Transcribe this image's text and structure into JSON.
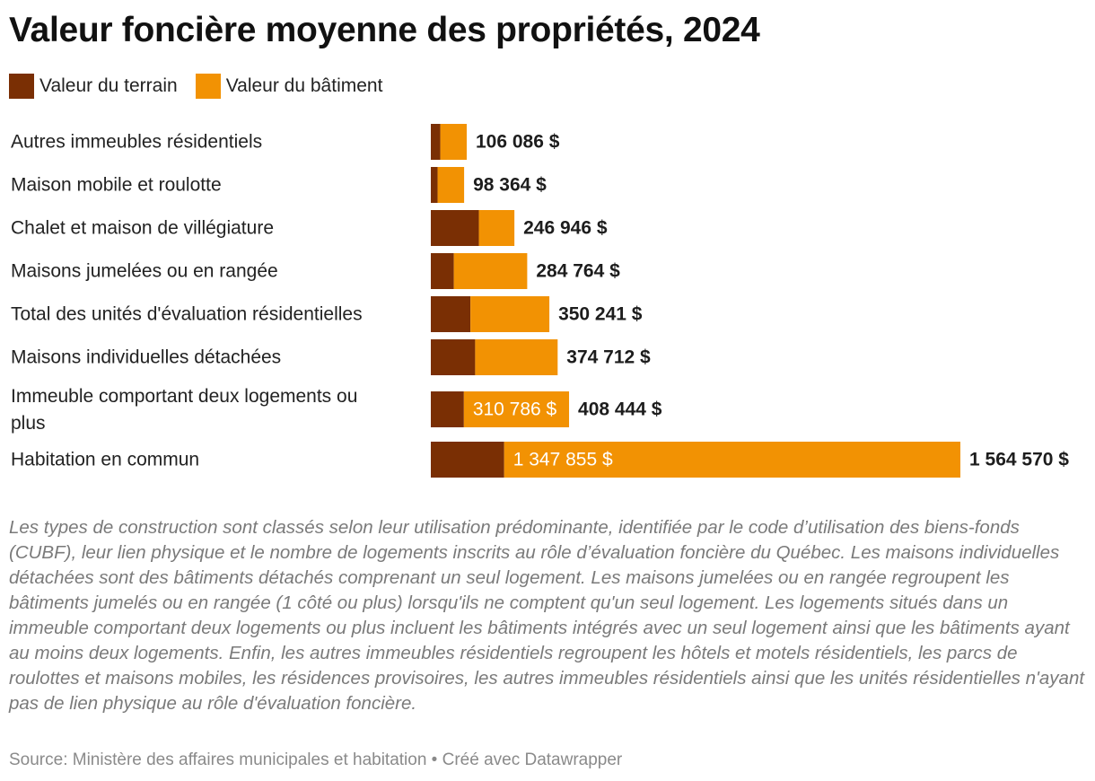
{
  "title": "Valeur foncière moyenne des propriétés, 2024",
  "colors": {
    "terrain": "#7a2f04",
    "batiment": "#f29203"
  },
  "chart_data": {
    "type": "bar",
    "orientation": "horizontal",
    "stacked": true,
    "legend_position": "top-left",
    "categories": [
      "Autres immeubles résidentiels",
      "Maison mobile et roulotte",
      "Chalet et maison de villégiature",
      "Maisons jumelées ou en rangée",
      "Total des unités d'évaluation résidentielles",
      "Maisons individuelles détachées",
      "Immeuble comportant deux logements ou plus",
      "Habitation en commun"
    ],
    "series": [
      {
        "name": "Valeur du terrain",
        "values": [
          28000,
          20000,
          142000,
          68000,
          117000,
          131000,
          97658,
          216715
        ]
      },
      {
        "name": "Valeur du bâtiment",
        "values": [
          78086,
          78364,
          104946,
          216764,
          233241,
          243712,
          310786,
          1347855
        ]
      }
    ],
    "segment_labels": [
      "",
      "",
      "",
      "",
      "",
      "",
      "310 786 $",
      "1 347 855 $"
    ],
    "totals": [
      106086,
      98364,
      246946,
      284764,
      350241,
      374712,
      408444,
      1564570
    ],
    "total_labels": [
      "106 086 $",
      "98 364 $",
      "246 946 $",
      "284 764 $",
      "350 241 $",
      "374 712 $",
      "408 444 $",
      "1 564 570 $"
    ],
    "xlim": [
      0,
      1564570
    ]
  },
  "note": "Les types de construction sont classés selon leur utilisation prédominante, identifiée par le code d’utilisation des biens-fonds (CUBF), leur lien physique et le nombre de logements inscrits au rôle d’évaluation foncière du Québec. Les maisons individuelles détachées sont des bâtiments détachés comprenant un seul logement. Les maisons jumelées ou en rangée regroupent les bâtiments jumelés ou en rangée (1 côté ou plus) lorsqu'ils ne comptent qu'un seul logement. Les logements situés dans un immeuble comportant deux logements ou plus incluent les bâtiments intégrés avec un seul logement ainsi que les bâtiments ayant au moins deux logements. Enfin, les autres immeubles résidentiels regroupent les hôtels et motels résidentiels, les parcs de roulottes et maisons mobiles, les résidences provisoires, les autres immeubles résidentiels ainsi que les unités résidentielles n'ayant pas de lien physique au rôle d'évaluation foncière.",
  "source": "Source: Ministère des affaires municipales et habitation • Créé avec Datawrapper"
}
